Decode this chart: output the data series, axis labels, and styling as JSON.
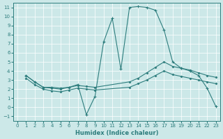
{
  "xlabel": "Humidex (Indice chaleur)",
  "background_color": "#cce8e8",
  "line_color": "#2d7d7d",
  "xlim": [
    -0.5,
    23.5
  ],
  "ylim": [
    -1.5,
    11.5
  ],
  "xticks": [
    0,
    1,
    2,
    3,
    4,
    5,
    6,
    7,
    8,
    9,
    10,
    11,
    12,
    13,
    14,
    15,
    16,
    17,
    18,
    19,
    20,
    21,
    22,
    23
  ],
  "yticks": [
    -1,
    0,
    1,
    2,
    3,
    4,
    5,
    6,
    7,
    8,
    9,
    10,
    11
  ],
  "line1_x": [
    1,
    2,
    3,
    4,
    5,
    6,
    7,
    8,
    9,
    13,
    14,
    15,
    16,
    17,
    18,
    19,
    20,
    21,
    22,
    23
  ],
  "line1_y": [
    3.5,
    2.8,
    2.2,
    2.1,
    2.0,
    2.2,
    2.4,
    2.3,
    2.2,
    2.8,
    3.2,
    3.8,
    4.4,
    5.0,
    4.5,
    4.3,
    4.1,
    3.8,
    3.5,
    3.3
  ],
  "line2_x": [
    1,
    2,
    3,
    4,
    5,
    6,
    7,
    8,
    9,
    13,
    14,
    15,
    16,
    17,
    18,
    19,
    20,
    21,
    22,
    23
  ],
  "line2_y": [
    3.2,
    2.5,
    2.0,
    1.8,
    1.7,
    1.9,
    2.1,
    2.0,
    1.9,
    2.2,
    2.6,
    3.0,
    3.5,
    4.0,
    3.6,
    3.4,
    3.2,
    3.0,
    2.8,
    2.6
  ],
  "main_x": [
    1,
    2,
    3,
    4,
    5,
    6,
    7,
    8,
    9,
    10,
    11,
    12,
    13,
    14,
    15,
    16,
    17,
    18,
    19,
    20,
    21,
    22,
    23
  ],
  "main_y": [
    3.5,
    2.8,
    2.2,
    2.2,
    2.1,
    2.2,
    2.5,
    -0.8,
    1.2,
    7.2,
    9.8,
    4.2,
    11.0,
    11.1,
    11.0,
    10.7,
    8.5,
    5.0,
    4.3,
    4.0,
    3.5,
    2.1,
    0.1
  ]
}
